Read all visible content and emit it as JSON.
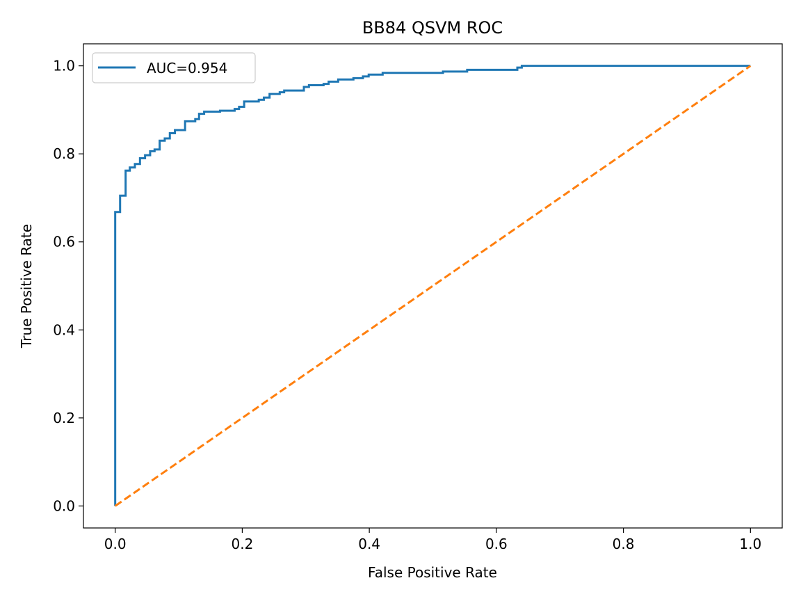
{
  "chart_data": {
    "type": "line",
    "title": "BB84 QSVM ROC",
    "xlabel": "False Positive Rate",
    "ylabel": "True Positive Rate",
    "xlim": [
      -0.05,
      1.05
    ],
    "ylim": [
      -0.05,
      1.05
    ],
    "xticks": [
      0.0,
      0.2,
      0.4,
      0.6,
      0.8,
      1.0
    ],
    "yticks": [
      0.0,
      0.2,
      0.4,
      0.6,
      0.8,
      1.0
    ],
    "xtick_labels": [
      "0.0",
      "0.2",
      "0.4",
      "0.6",
      "0.8",
      "1.0"
    ],
    "ytick_labels": [
      "0.0",
      "0.2",
      "0.4",
      "0.6",
      "0.8",
      "1.0"
    ],
    "grid": false,
    "legend_position": "upper-left",
    "series": [
      {
        "name": "AUC=0.954",
        "color": "#1f77b4",
        "style": "step",
        "x": [
          0.0,
          0.0,
          0.0077,
          0.0164,
          0.023,
          0.031,
          0.039,
          0.047,
          0.055,
          0.062,
          0.07,
          0.078,
          0.086,
          0.094,
          0.11,
          0.126,
          0.132,
          0.14,
          0.165,
          0.188,
          0.195,
          0.203,
          0.226,
          0.234,
          0.243,
          0.259,
          0.266,
          0.297,
          0.305,
          0.328,
          0.336,
          0.351,
          0.375,
          0.39,
          0.399,
          0.421,
          0.516,
          0.554,
          0.633,
          0.64,
          1.0
        ],
        "y": [
          0.0,
          0.668,
          0.705,
          0.762,
          0.769,
          0.777,
          0.79,
          0.797,
          0.806,
          0.81,
          0.83,
          0.835,
          0.847,
          0.854,
          0.874,
          0.879,
          0.891,
          0.896,
          0.898,
          0.902,
          0.907,
          0.919,
          0.923,
          0.928,
          0.936,
          0.94,
          0.944,
          0.952,
          0.956,
          0.959,
          0.964,
          0.969,
          0.972,
          0.976,
          0.98,
          0.984,
          0.987,
          0.991,
          0.996,
          1.0,
          1.0
        ]
      },
      {
        "color": "#ff7f0e",
        "style": "dashed",
        "x": [
          0.0,
          1.0
        ],
        "y": [
          0.0,
          1.0
        ]
      }
    ]
  }
}
